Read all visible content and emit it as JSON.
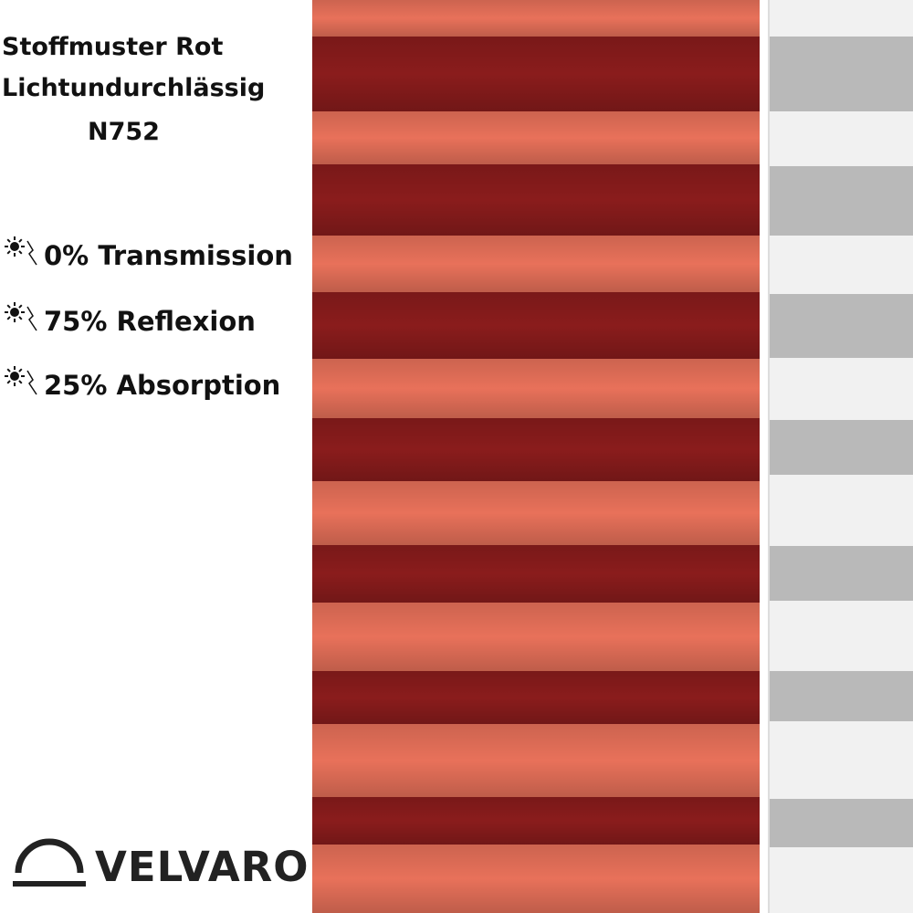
{
  "header": {
    "lines": [
      "Stoffmuster Rot",
      "Lichtundurchlässig",
      "N752"
    ]
  },
  "properties": [
    "0% Transmission",
    "75% Reflexion",
    "25% Absorption"
  ],
  "brand": "VELVARO"
}
